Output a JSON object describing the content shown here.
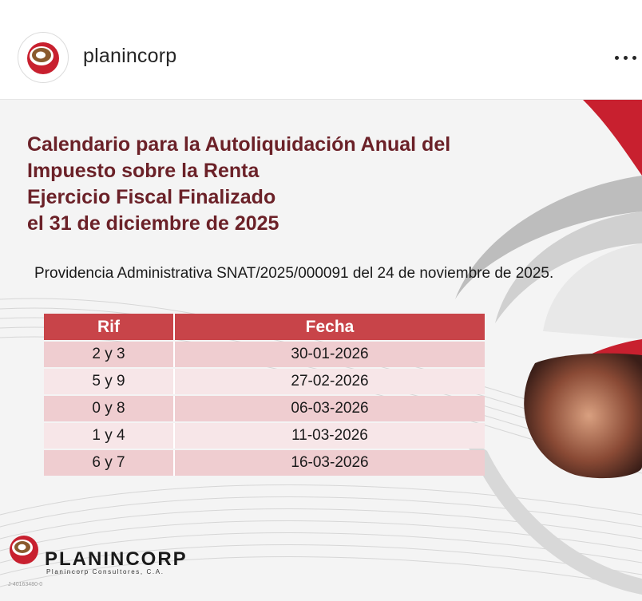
{
  "header": {
    "username": "planincorp",
    "colors": {
      "brand_red": "#c8202f",
      "brand_brown": "#6b2128"
    }
  },
  "post": {
    "title_lines": [
      "Calendario para la Autoliquidación Anual del",
      "Impuesto sobre la Renta",
      "Ejercicio Fiscal Finalizado",
      "el 31 de diciembre de 2025"
    ],
    "providencia": "Providencia Administrativa SNAT/2025/000091 del 24 de noviembre de 2025.",
    "table": {
      "headers": [
        "Rif",
        "Fecha"
      ],
      "rows": [
        [
          "2 y 3",
          "30-01-2026"
        ],
        [
          "5 y 9",
          "27-02-2026"
        ],
        [
          "0 y 8",
          "06-03-2026"
        ],
        [
          "1 y 4",
          "11-03-2026"
        ],
        [
          "6 y 7",
          "16-03-2026"
        ]
      ]
    },
    "logo": {
      "name": "PLANINCORP",
      "tagline": "Planincorp Consultores, C.A."
    },
    "watermark": "J-40163480-0"
  }
}
